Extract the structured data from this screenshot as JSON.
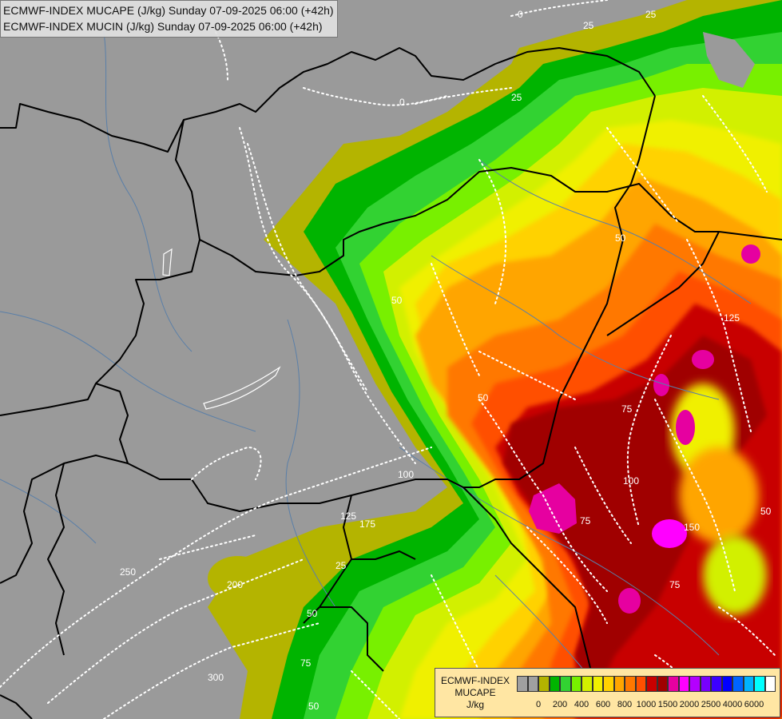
{
  "title": {
    "line1": "ECMWF-INDEX MUCAPE (J/kg) Sunday 07-09-2025 06:00 (+42h)",
    "line2": "ECMWF-INDEX MUCIN (J/kg) Sunday 07-09-2025 06:00 (+42h)"
  },
  "legend": {
    "line1": "ECMWF-INDEX",
    "line2": "MUCAPE",
    "line3": "J/kg",
    "colors": [
      "#a0a0a0",
      "#a0a0a0",
      "#b4b400",
      "#00b400",
      "#32d232",
      "#78f000",
      "#d2f000",
      "#f0f000",
      "#ffd200",
      "#ffa500",
      "#ff7800",
      "#ff5000",
      "#c80000",
      "#a00000",
      "#e600a0",
      "#ff00ff",
      "#b400ff",
      "#7800ff",
      "#3c00ff",
      "#0000ff",
      "#0064ff",
      "#00b4ff",
      "#00ffff",
      "#ffffff"
    ],
    "ticks": [
      {
        "label": "0",
        "index": 1
      },
      {
        "label": "200",
        "index": 3
      },
      {
        "label": "400",
        "index": 5
      },
      {
        "label": "600",
        "index": 7
      },
      {
        "label": "800",
        "index": 9
      },
      {
        "label": "1000",
        "index": 11
      },
      {
        "label": "1500",
        "index": 13
      },
      {
        "label": "2000",
        "index": 15
      },
      {
        "label": "2500",
        "index": 17
      },
      {
        "label": "4000",
        "index": 19
      },
      {
        "label": "6000",
        "index": 21
      }
    ]
  },
  "contour_labels": [
    "0",
    "25",
    "25",
    "50",
    "25",
    "50",
    "75",
    "125",
    "50",
    "75",
    "100",
    "150",
    "75",
    "50",
    "25",
    "50",
    "75",
    "100",
    "125",
    "175",
    "200",
    "250",
    "300",
    "50",
    "0"
  ]
}
